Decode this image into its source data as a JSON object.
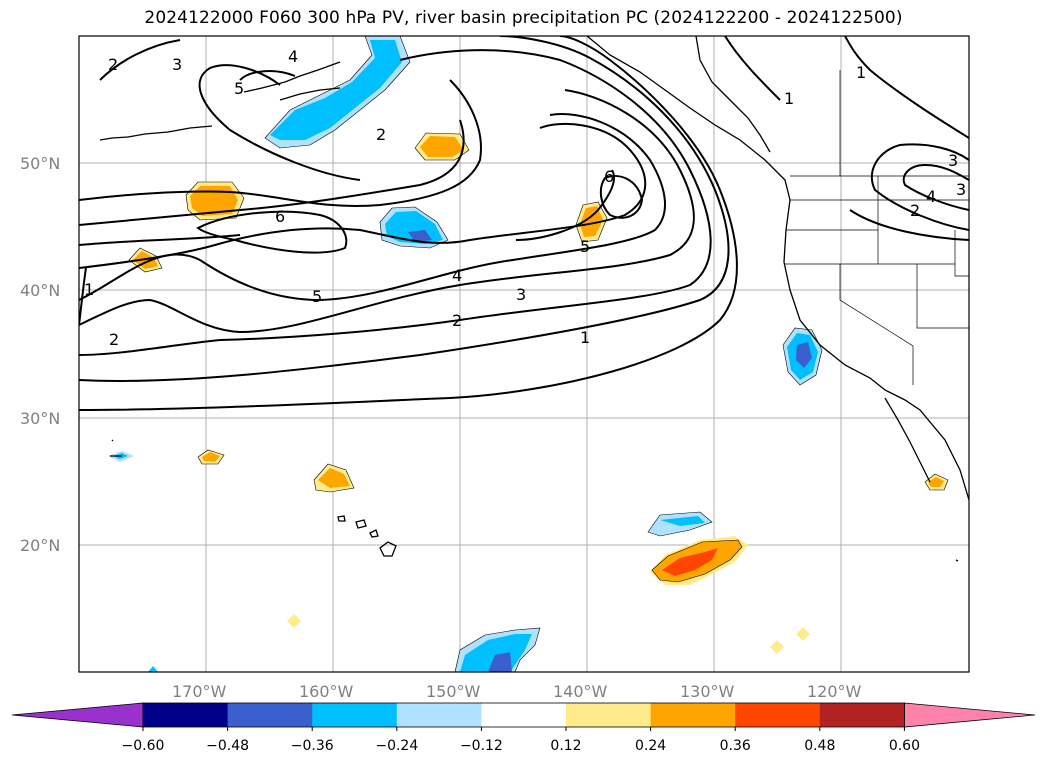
{
  "title": "2024122000 F060 300 hPa PV, river basin precipitation PC (2024122200 - 2024122500)",
  "lat_labels": [
    "50°N",
    "40°N",
    "30°N",
    "20°N"
  ],
  "lon_labels": [
    "170°W",
    "160°W",
    "150°W",
    "140°W",
    "130°W",
    "120°W"
  ],
  "contour_labels": [
    "1",
    "2",
    "3",
    "4",
    "5",
    "6",
    "2",
    "3",
    "2",
    "4",
    "5",
    "2",
    "1",
    "6",
    "5",
    "1",
    "3",
    "4",
    "3",
    "1",
    "2"
  ],
  "colorbar": {
    "ticks": [
      "−0.60",
      "−0.48",
      "−0.36",
      "−0.24",
      "−0.12",
      "0.12",
      "0.24",
      "0.36",
      "0.48",
      "0.60"
    ],
    "colors": [
      "#9932cc",
      "#00008b",
      "#3a5fcd",
      "#00bfff",
      "#b0e2ff",
      "#ffffff",
      "#ffeb8c",
      "#ffa500",
      "#ff4500",
      "#b22222",
      "#ff82ab"
    ]
  },
  "map": {
    "extent_lon": [
      -180,
      -110
    ],
    "extent_lat": [
      10,
      60
    ],
    "gridlines": true,
    "field_contour": "300 hPa PV",
    "field_filled": "river basin precipitation PC"
  }
}
